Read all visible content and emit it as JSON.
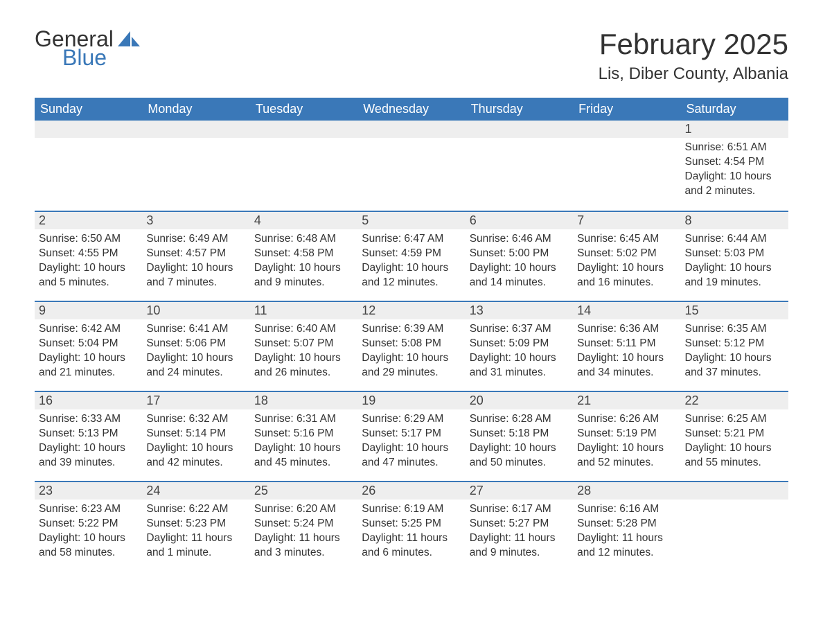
{
  "logo": {
    "text1": "General",
    "text2": "Blue",
    "color_general": "#333333",
    "color_blue": "#3a78b8"
  },
  "title": "February 2025",
  "location": "Lis, Diber County, Albania",
  "colors": {
    "header_bg": "#3a78b8",
    "header_text": "#ffffff",
    "daynum_bg": "#eeeeee",
    "row_divider": "#3a78b8",
    "body_bg": "#ffffff",
    "text": "#333333"
  },
  "fonts": {
    "title_size": 42,
    "location_size": 24,
    "header_size": 18,
    "daynum_size": 18,
    "body_size": 15.5
  },
  "daynames": [
    "Sunday",
    "Monday",
    "Tuesday",
    "Wednesday",
    "Thursday",
    "Friday",
    "Saturday"
  ],
  "weeks": [
    [
      null,
      null,
      null,
      null,
      null,
      null,
      {
        "n": "1",
        "sr": "Sunrise: 6:51 AM",
        "ss": "Sunset: 4:54 PM",
        "dl": "Daylight: 10 hours and 2 minutes."
      }
    ],
    [
      {
        "n": "2",
        "sr": "Sunrise: 6:50 AM",
        "ss": "Sunset: 4:55 PM",
        "dl": "Daylight: 10 hours and 5 minutes."
      },
      {
        "n": "3",
        "sr": "Sunrise: 6:49 AM",
        "ss": "Sunset: 4:57 PM",
        "dl": "Daylight: 10 hours and 7 minutes."
      },
      {
        "n": "4",
        "sr": "Sunrise: 6:48 AM",
        "ss": "Sunset: 4:58 PM",
        "dl": "Daylight: 10 hours and 9 minutes."
      },
      {
        "n": "5",
        "sr": "Sunrise: 6:47 AM",
        "ss": "Sunset: 4:59 PM",
        "dl": "Daylight: 10 hours and 12 minutes."
      },
      {
        "n": "6",
        "sr": "Sunrise: 6:46 AM",
        "ss": "Sunset: 5:00 PM",
        "dl": "Daylight: 10 hours and 14 minutes."
      },
      {
        "n": "7",
        "sr": "Sunrise: 6:45 AM",
        "ss": "Sunset: 5:02 PM",
        "dl": "Daylight: 10 hours and 16 minutes."
      },
      {
        "n": "8",
        "sr": "Sunrise: 6:44 AM",
        "ss": "Sunset: 5:03 PM",
        "dl": "Daylight: 10 hours and 19 minutes."
      }
    ],
    [
      {
        "n": "9",
        "sr": "Sunrise: 6:42 AM",
        "ss": "Sunset: 5:04 PM",
        "dl": "Daylight: 10 hours and 21 minutes."
      },
      {
        "n": "10",
        "sr": "Sunrise: 6:41 AM",
        "ss": "Sunset: 5:06 PM",
        "dl": "Daylight: 10 hours and 24 minutes."
      },
      {
        "n": "11",
        "sr": "Sunrise: 6:40 AM",
        "ss": "Sunset: 5:07 PM",
        "dl": "Daylight: 10 hours and 26 minutes."
      },
      {
        "n": "12",
        "sr": "Sunrise: 6:39 AM",
        "ss": "Sunset: 5:08 PM",
        "dl": "Daylight: 10 hours and 29 minutes."
      },
      {
        "n": "13",
        "sr": "Sunrise: 6:37 AM",
        "ss": "Sunset: 5:09 PM",
        "dl": "Daylight: 10 hours and 31 minutes."
      },
      {
        "n": "14",
        "sr": "Sunrise: 6:36 AM",
        "ss": "Sunset: 5:11 PM",
        "dl": "Daylight: 10 hours and 34 minutes."
      },
      {
        "n": "15",
        "sr": "Sunrise: 6:35 AM",
        "ss": "Sunset: 5:12 PM",
        "dl": "Daylight: 10 hours and 37 minutes."
      }
    ],
    [
      {
        "n": "16",
        "sr": "Sunrise: 6:33 AM",
        "ss": "Sunset: 5:13 PM",
        "dl": "Daylight: 10 hours and 39 minutes."
      },
      {
        "n": "17",
        "sr": "Sunrise: 6:32 AM",
        "ss": "Sunset: 5:14 PM",
        "dl": "Daylight: 10 hours and 42 minutes."
      },
      {
        "n": "18",
        "sr": "Sunrise: 6:31 AM",
        "ss": "Sunset: 5:16 PM",
        "dl": "Daylight: 10 hours and 45 minutes."
      },
      {
        "n": "19",
        "sr": "Sunrise: 6:29 AM",
        "ss": "Sunset: 5:17 PM",
        "dl": "Daylight: 10 hours and 47 minutes."
      },
      {
        "n": "20",
        "sr": "Sunrise: 6:28 AM",
        "ss": "Sunset: 5:18 PM",
        "dl": "Daylight: 10 hours and 50 minutes."
      },
      {
        "n": "21",
        "sr": "Sunrise: 6:26 AM",
        "ss": "Sunset: 5:19 PM",
        "dl": "Daylight: 10 hours and 52 minutes."
      },
      {
        "n": "22",
        "sr": "Sunrise: 6:25 AM",
        "ss": "Sunset: 5:21 PM",
        "dl": "Daylight: 10 hours and 55 minutes."
      }
    ],
    [
      {
        "n": "23",
        "sr": "Sunrise: 6:23 AM",
        "ss": "Sunset: 5:22 PM",
        "dl": "Daylight: 10 hours and 58 minutes."
      },
      {
        "n": "24",
        "sr": "Sunrise: 6:22 AM",
        "ss": "Sunset: 5:23 PM",
        "dl": "Daylight: 11 hours and 1 minute."
      },
      {
        "n": "25",
        "sr": "Sunrise: 6:20 AM",
        "ss": "Sunset: 5:24 PM",
        "dl": "Daylight: 11 hours and 3 minutes."
      },
      {
        "n": "26",
        "sr": "Sunrise: 6:19 AM",
        "ss": "Sunset: 5:25 PM",
        "dl": "Daylight: 11 hours and 6 minutes."
      },
      {
        "n": "27",
        "sr": "Sunrise: 6:17 AM",
        "ss": "Sunset: 5:27 PM",
        "dl": "Daylight: 11 hours and 9 minutes."
      },
      {
        "n": "28",
        "sr": "Sunrise: 6:16 AM",
        "ss": "Sunset: 5:28 PM",
        "dl": "Daylight: 11 hours and 12 minutes."
      },
      null
    ]
  ]
}
